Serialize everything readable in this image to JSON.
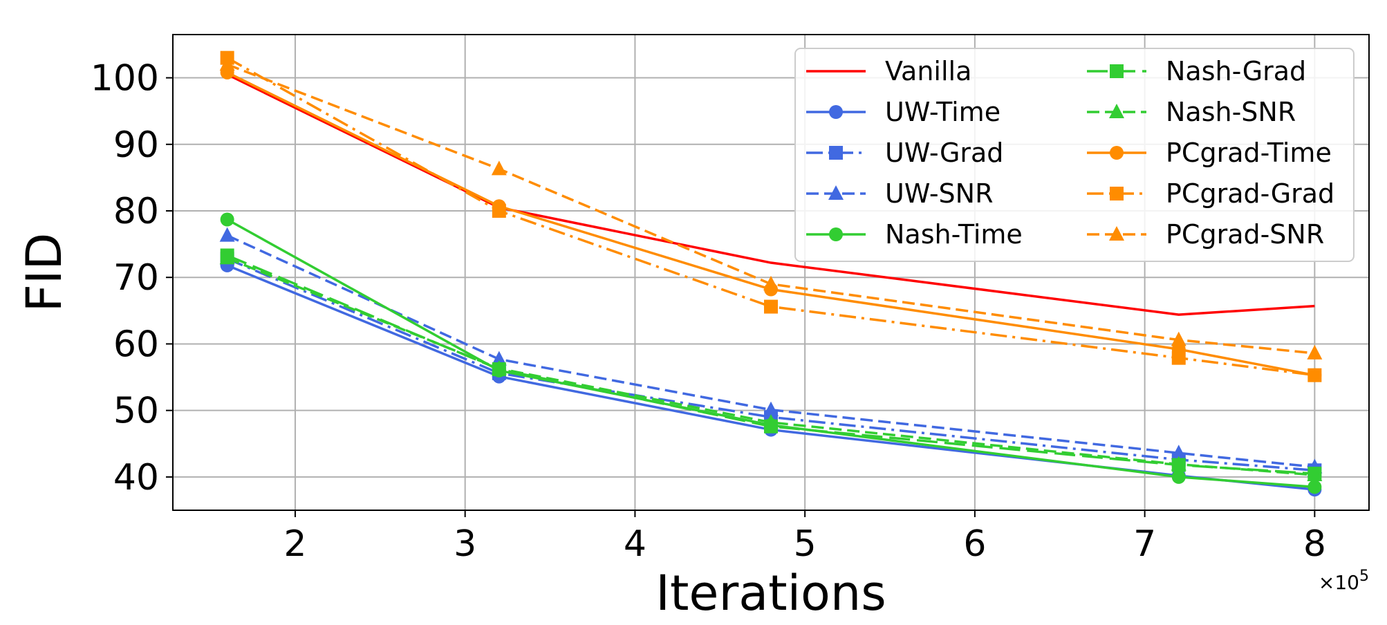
{
  "chart_data": {
    "type": "line",
    "xlabel": "Iterations",
    "ylabel": "FID",
    "x_multiplier_label": "×10",
    "x_multiplier_exp": "5",
    "xlim": [
      1.28,
      8.32
    ],
    "ylim": [
      35,
      106.5
    ],
    "xticks": [
      2,
      3,
      4,
      5,
      6,
      7,
      8
    ],
    "yticks": [
      40,
      50,
      60,
      70,
      80,
      90,
      100
    ],
    "grid": true,
    "legend_position": "top-right",
    "legend_columns": 2,
    "x": [
      1.6,
      3.2,
      4.8,
      7.2,
      8.0
    ],
    "series": [
      {
        "name": "Vanilla",
        "color": "#ff0000",
        "dash": "solid",
        "marker": "none",
        "values": [
          100.5,
          80.5,
          72.2,
          64.4,
          65.7
        ]
      },
      {
        "name": "UW-Time",
        "color": "#4169e1",
        "dash": "solid",
        "marker": "circle",
        "values": [
          71.8,
          55.1,
          47.1,
          40.2,
          38.1
        ]
      },
      {
        "name": "UW-Grad",
        "color": "#4169e1",
        "dash": "dashdot",
        "marker": "square",
        "values": [
          72.8,
          55.6,
          49.0,
          42.6,
          41.0
        ]
      },
      {
        "name": "UW-SNR",
        "color": "#4169e1",
        "dash": "dashed",
        "marker": "triangle",
        "values": [
          76.3,
          57.7,
          50.1,
          43.6,
          41.5
        ]
      },
      {
        "name": "Nash-Time",
        "color": "#32cd32",
        "dash": "solid",
        "marker": "circle",
        "values": [
          78.7,
          56.0,
          47.8,
          40.0,
          38.5
        ]
      },
      {
        "name": "Nash-Grad",
        "color": "#32cd32",
        "dash": "longdash",
        "marker": "square",
        "values": [
          73.3,
          56.2,
          47.6,
          41.8,
          40.5
        ]
      },
      {
        "name": "Nash-SNR",
        "color": "#32cd32",
        "dash": "dashed",
        "marker": "triangle",
        "values": [
          72.9,
          56.3,
          48.2,
          41.9,
          40.3
        ]
      },
      {
        "name": "PCgrad-Time",
        "color": "#ff8c00",
        "dash": "solid",
        "marker": "circle",
        "values": [
          100.8,
          80.7,
          68.2,
          59.2,
          55.3
        ]
      },
      {
        "name": "PCgrad-Grad",
        "color": "#ff8c00",
        "dash": "dashdot",
        "marker": "square",
        "values": [
          103.0,
          80.0,
          65.6,
          57.9,
          55.3
        ]
      },
      {
        "name": "PCgrad-SNR",
        "color": "#ff8c00",
        "dash": "dashed",
        "marker": "triangle",
        "values": [
          102.0,
          86.3,
          69.0,
          60.6,
          58.6
        ]
      }
    ]
  }
}
